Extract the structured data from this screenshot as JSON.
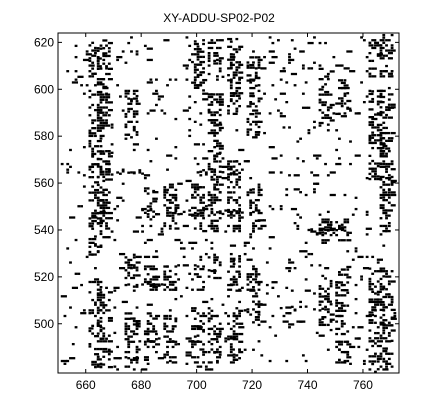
{
  "chart_data": {
    "type": "heatmap",
    "title": "XY-ADDU-SP02-P02",
    "xlabel": "",
    "ylabel": "",
    "xlim": [
      650,
      773
    ],
    "ylim": [
      479,
      624
    ],
    "x_ticks": [
      660,
      680,
      700,
      720,
      740,
      760
    ],
    "y_ticks": [
      500,
      520,
      540,
      560,
      580,
      600,
      620
    ],
    "colors": {
      "background": "#ffffff",
      "cell": "#000000",
      "axis": "#000000"
    },
    "grid": false,
    "note_visible": "",
    "dense_columns": [
      {
        "x": 663,
        "y_ranges": [
          [
            482,
            520
          ],
          [
            530,
            600
          ],
          [
            606,
            622
          ]
        ]
      },
      {
        "x": 666,
        "y_ranges": [
          [
            482,
            515
          ],
          [
            540,
            575
          ],
          [
            585,
            622
          ]
        ]
      },
      {
        "x": 676,
        "y_ranges": [
          [
            484,
            505
          ],
          [
            520,
            530
          ],
          [
            580,
            600
          ]
        ]
      },
      {
        "x": 683,
        "y_ranges": [
          [
            484,
            505
          ],
          [
            515,
            525
          ],
          [
            545,
            560
          ]
        ]
      },
      {
        "x": 690,
        "y_ranges": [
          [
            484,
            505
          ],
          [
            515,
            525
          ],
          [
            540,
            560
          ]
        ]
      },
      {
        "x": 700,
        "y_ranges": [
          [
            484,
            508
          ],
          [
            515,
            525
          ],
          [
            540,
            560
          ],
          [
            600,
            622
          ]
        ]
      },
      {
        "x": 706,
        "y_ranges": [
          [
            484,
            508
          ],
          [
            520,
            530
          ],
          [
            540,
            600
          ],
          [
            606,
            622
          ]
        ]
      },
      {
        "x": 713,
        "y_ranges": [
          [
            484,
            508
          ],
          [
            515,
            530
          ],
          [
            540,
            570
          ],
          [
            590,
            622
          ]
        ]
      },
      {
        "x": 720,
        "y_ranges": [
          [
            500,
            510
          ],
          [
            515,
            525
          ],
          [
            540,
            560
          ],
          [
            580,
            615
          ]
        ]
      },
      {
        "x": 746,
        "y_ranges": [
          [
            500,
            525
          ],
          [
            535,
            545
          ],
          [
            585,
            610
          ]
        ]
      },
      {
        "x": 752,
        "y_ranges": [
          [
            484,
            525
          ],
          [
            535,
            545
          ],
          [
            590,
            605
          ]
        ]
      },
      {
        "x": 764,
        "y_ranges": [
          [
            480,
            525
          ],
          [
            560,
            600
          ],
          [
            606,
            622
          ]
        ]
      },
      {
        "x": 768,
        "y_ranges": [
          [
            480,
            525
          ],
          [
            540,
            600
          ],
          [
            606,
            624
          ]
        ]
      }
    ]
  }
}
